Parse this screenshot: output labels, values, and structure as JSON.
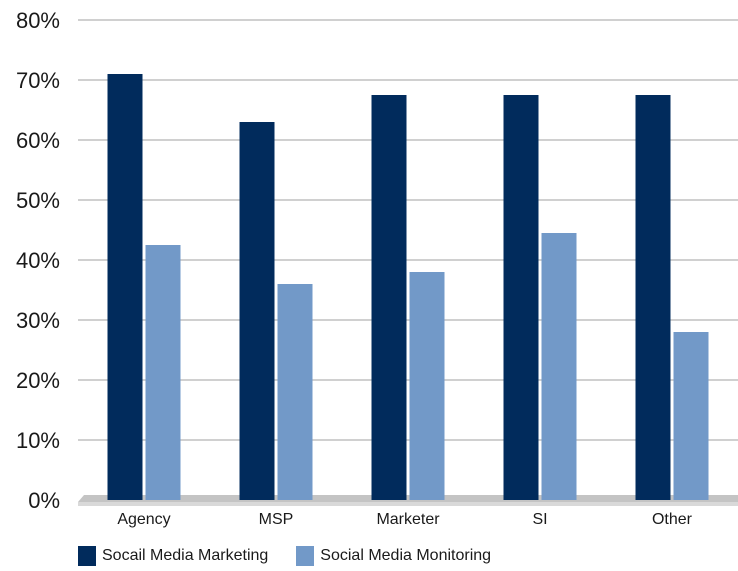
{
  "chart_data": {
    "type": "bar",
    "categories": [
      "Agency",
      "MSP",
      "Marketer",
      "SI",
      "Other"
    ],
    "series": [
      {
        "name": "Socail Media Marketing",
        "values": [
          71,
          63,
          67.5,
          67.5,
          67.5
        ],
        "color": "#012b5c"
      },
      {
        "name": "Social Media Monitoring",
        "values": [
          42.5,
          36,
          38,
          44.5,
          28
        ],
        "color": "#7299c8"
      }
    ],
    "ylim": [
      0,
      80
    ],
    "yticks": [
      "0%",
      "10%",
      "20%",
      "30%",
      "40%",
      "50%",
      "60%",
      "70%",
      "80%"
    ],
    "grid": true,
    "legend_position": "bottom-left",
    "xlabel": "",
    "ylabel": "",
    "title": ""
  }
}
